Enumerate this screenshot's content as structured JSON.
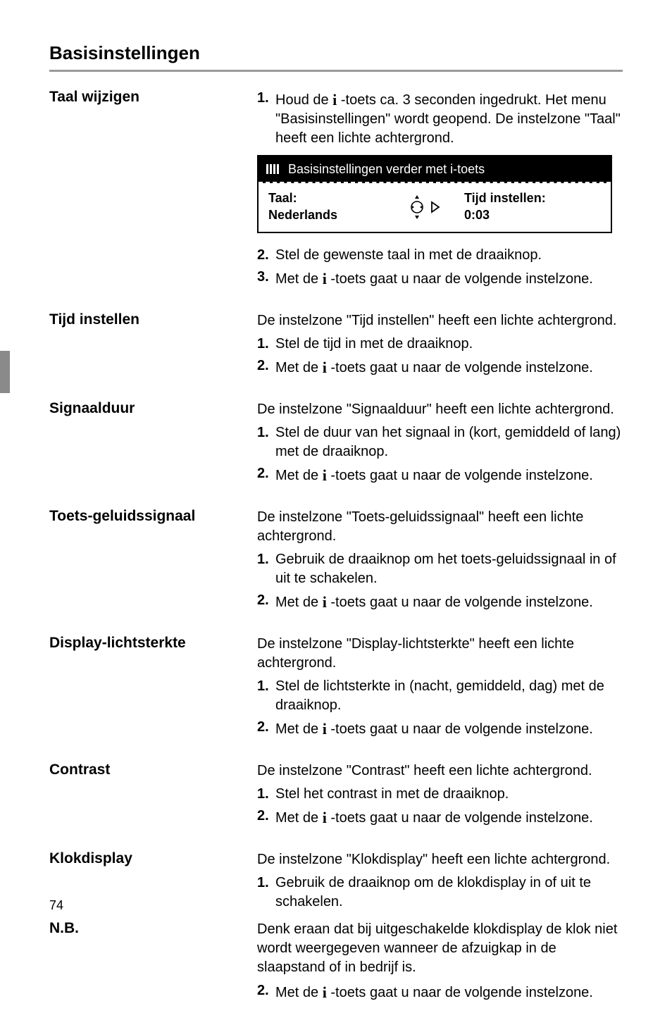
{
  "page": {
    "title": "Basisinstellingen",
    "page_number": "74"
  },
  "display": {
    "header_text": "Basisinstellingen verder met i-toets",
    "left_label": "Taal:",
    "left_value": "Nederlands",
    "right_label": "Tijd instellen:",
    "right_value": "0:03"
  },
  "sections": [
    {
      "heading": "Taal wijzigen",
      "intro": null,
      "steps": [
        {
          "n": "1.",
          "text_parts": [
            "Houd de ",
            "i",
            " -toets ca. 3 seconden ingedrukt. Het menu \"Basisinstellingen\" wordt geopend. De instelzone \"Taal\" heeft een lichte achtergrond."
          ]
        }
      ],
      "show_display_after": true,
      "steps_after": [
        {
          "n": "2.",
          "text_parts": [
            "Stel de gewenste taal in met de draaiknop."
          ]
        },
        {
          "n": "3.",
          "text_parts": [
            "Met de ",
            "i",
            " -toets gaat u naar de volgende instelzone."
          ]
        }
      ]
    },
    {
      "heading": "Tijd instellen",
      "intro": "De instelzone \"Tijd instellen\" heeft een lichte achtergrond.",
      "steps": [
        {
          "n": "1.",
          "text_parts": [
            "Stel de tijd in met de draaiknop."
          ]
        },
        {
          "n": "2.",
          "text_parts": [
            "Met de ",
            "i",
            " -toets gaat u naar de volgende instelzone."
          ]
        }
      ]
    },
    {
      "heading": "Signaalduur",
      "intro": "De instelzone \"Signaalduur\" heeft een lichte achtergrond.",
      "steps": [
        {
          "n": "1.",
          "text_parts": [
            "Stel de duur van het signaal in (kort, gemiddeld of lang) met de draaiknop."
          ]
        },
        {
          "n": "2.",
          "text_parts": [
            "Met de ",
            "i",
            " -toets gaat u naar de volgende instelzone."
          ]
        }
      ]
    },
    {
      "heading": "Toets-geluidssignaal",
      "intro": "De instelzone \"Toets-geluidssignaal\" heeft een lichte achtergrond.",
      "steps": [
        {
          "n": "1.",
          "text_parts": [
            "Gebruik de draaiknop om het toets-geluidssignaal in of uit te schakelen."
          ]
        },
        {
          "n": "2.",
          "text_parts": [
            "Met de ",
            "i",
            " -toets gaat u naar de volgende instelzone."
          ]
        }
      ]
    },
    {
      "heading": "Display-lichtsterkte",
      "intro": "De instelzone \"Display-lichtsterkte\" heeft een lichte achtergrond.",
      "steps": [
        {
          "n": "1.",
          "text_parts": [
            "Stel de lichtsterkte in (nacht, gemiddeld, dag) met de draaiknop."
          ]
        },
        {
          "n": "2.",
          "text_parts": [
            "Met de ",
            "i",
            " -toets gaat u naar de volgende instelzone."
          ]
        }
      ]
    },
    {
      "heading": "Contrast",
      "intro": "De instelzone \"Contrast\" heeft een lichte achtergrond.",
      "steps": [
        {
          "n": "1.",
          "text_parts": [
            "Stel het contrast in met de draaiknop."
          ]
        },
        {
          "n": "2.",
          "text_parts": [
            "Met de ",
            "i",
            " -toets gaat u naar de volgende instelzone."
          ]
        }
      ]
    },
    {
      "heading": "Klokdisplay",
      "intro": "De instelzone \"Klokdisplay\" heeft een lichte achtergrond.",
      "steps": [
        {
          "n": "1.",
          "text_parts": [
            "Gebruik de draaiknop om de klokdisplay in of uit te schakelen."
          ]
        }
      ],
      "sub": {
        "heading": "N.B.",
        "intro": "Denk eraan dat bij uitgeschakelde klokdisplay de klok niet wordt weergegeven wanneer de afzuigkap in de slaapstand of in bedrijf is.",
        "steps": [
          {
            "n": "2.",
            "text_parts": [
              "Met de ",
              "i",
              " -toets gaat u naar de volgende instelzone."
            ]
          }
        ]
      }
    }
  ]
}
